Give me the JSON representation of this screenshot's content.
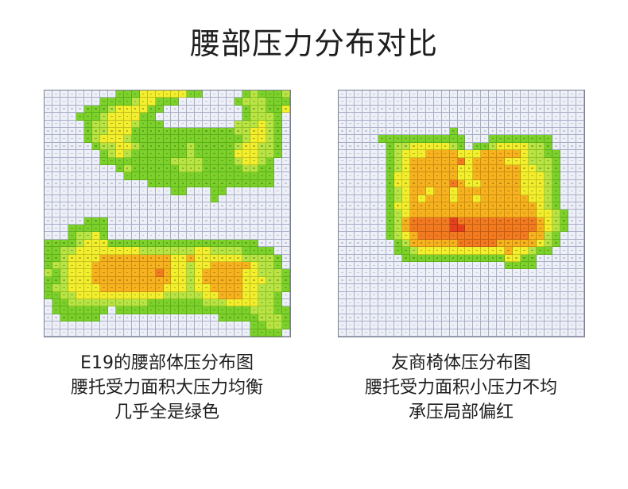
{
  "title": "腰部压力分布对比",
  "panels": [
    {
      "name": "e19",
      "caption": [
        "E19的腰部体压分布图",
        "腰托受力面积大压力均衡",
        "几乎全是绿色"
      ]
    },
    {
      "name": "competitor",
      "caption": [
        "友商椅体压分布图",
        "腰托受力面积小压力不均",
        "承压局部偏红"
      ]
    }
  ],
  "colors": {
    "empty": "#eef0f8",
    "grid_line": "#a9aec8",
    "low_green": "#7cd12a",
    "mid_green": "#b8e444",
    "yellow": "#f3ef2c",
    "orange": "#f7b21e",
    "red_orange": "#f47a20",
    "red": "#e8401c"
  },
  "chart_data": [
    {
      "type": "heatmap",
      "title": "E19的腰部体压分布图",
      "grid": {
        "cols": 31,
        "rows": 33
      },
      "levels": [
        "empty",
        "low_green",
        "mid_green",
        "yellow",
        "orange",
        "red_orange",
        "red"
      ],
      "rows": [
        "0000000001113333331100000121112",
        "0000000111123311100000001222111",
        "0000011123333110000000000122113",
        "0000111233331100000000000122210",
        "0000012233321110000000002223210",
        "0000012233311111111111112233210",
        "0000012333211111111111111233210",
        "0000001223321111112111112332210",
        "0000000123211111112111113332210",
        "0000000111111111222211112332100",
        "0000000001211111122211111221100",
        "0000000000111111111111111111100",
        "0000000000000111111111111111100",
        "0000000000000000110001100000000",
        "0000000000000000000001000000000",
        "0000000000000000000000000000000",
        "0000000000000000000000000000000",
        "0000011100000000000000000000000",
        "0001111100000000000000000000000",
        "0001223100000000000000000000000",
        "1111233311111111111111111110000",
        "1122333333332222222332222111100",
        "1123333444444444334333333222210",
        "1223334444444444332334444432210",
        "2123334444444454332344444332221",
        "1123334444444444332344444333221",
        "1223333444444443332334444332221",
        "1122333333333332222233444332210",
        "0112222222222111111122233332210",
        "0111111101111111111111111122211",
        "0011111000000000000000111112221",
        "0000000000000000000000000011221",
        "0000000000000000000000000011110"
      ]
    },
    {
      "type": "heatmap",
      "title": "友商椅体压分布图",
      "grid": {
        "cols": 31,
        "rows": 33
      },
      "levels": [
        "empty",
        "low_green",
        "mid_green",
        "yellow",
        "orange",
        "red_orange",
        "red"
      ],
      "rows": [
        "0000000000000000000000000000000",
        "0000000000000000000000000000000",
        "0000000000000000000000000000000",
        "0000000000000000000000000000000",
        "0000000000000000000000000000000",
        "0000000000000010000000000000000",
        "0000011111111111000111111110000",
        "0000001223333321011233332210000",
        "0000001233344443334444432211000",
        "0000001234444445344443332221000",
        "0000001234444443344444433221000",
        "0000001334444443344444433321000",
        "0000001334444454334444433321000",
        "0000001234434434444444433321000",
        "0000001234344434434444443321000",
        "0000001334444444444444444321000",
        "0000001234444444444444444332100",
        "0000001245555565555555555432100",
        "0000001245555566555555555432100",
        "0000001234555555555555554421000",
        "0000000124444445555544444321000",
        "0000000112333333333334332110000",
        "0000000011111111111113311000000",
        "0000000000000000000001111000000",
        "0000000000000000000000000000000",
        "0000000000000000000000000000000",
        "0000000000000000000000000000000",
        "0000000000000000000000000000000",
        "0000000000000000000000000000000",
        "0000000000000000000000000000000",
        "0000000000000000000000000000000",
        "0000000000000000000000000000000",
        "0000000000000000000000000000000"
      ]
    }
  ]
}
